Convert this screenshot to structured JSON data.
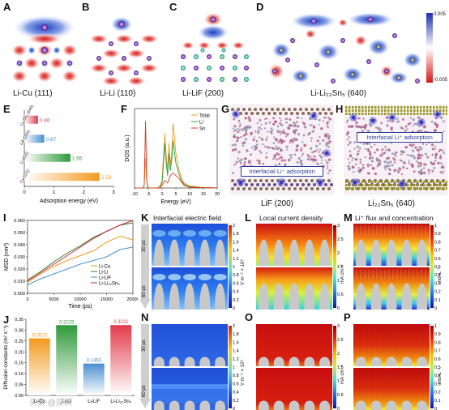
{
  "panels": {
    "A": {
      "letter": "A",
      "caption": "Li-Cu (111)"
    },
    "B": {
      "letter": "B",
      "caption": "Li-Li (110)"
    },
    "C": {
      "letter": "C",
      "caption": "Li-LiF (200)"
    },
    "D": {
      "letter": "D",
      "caption": "Li-Li₂₂Sn₅ (640)",
      "colorbar_max": "0.005",
      "colorbar_min": "-0.005"
    },
    "E": {
      "letter": "E"
    },
    "F": {
      "letter": "F"
    },
    "G": {
      "letter": "G",
      "caption": "LiF (200)",
      "annotation": "Interfacial Li⁺ adsorption"
    },
    "H": {
      "letter": "H",
      "caption": "Li₂₂Sn₅ (640)",
      "annotation": "Interfacial Li⁺ adsorption"
    },
    "I": {
      "letter": "I"
    },
    "J": {
      "letter": "J"
    },
    "K": {
      "letter": "K",
      "title": "Interfacial electric field",
      "unit": "V m⁻¹ × 10⁸",
      "time_top": "30 ps",
      "time_bottom": "60 ps"
    },
    "L": {
      "letter": "L",
      "title": "Local current density",
      "unit": "mA cm⁻²"
    },
    "M": {
      "letter": "M",
      "title": "Li⁺ flux and concentration",
      "unit": "mol L⁻¹"
    },
    "N": {
      "letter": "N",
      "unit": "V m⁻¹ × 10⁸",
      "time_top": "30 ps",
      "time_bottom": "60 ps"
    },
    "O": {
      "letter": "O",
      "unit": "mA cm⁻²"
    },
    "P": {
      "letter": "P",
      "unit": "mol L⁻¹"
    }
  },
  "colorbars": {
    "K": [
      "2",
      "1.8",
      "1.6",
      "1.4",
      "1.2",
      "1",
      "0.8",
      "0.6",
      "0.4",
      "0.2",
      "0"
    ],
    "L": [
      "3",
      "2.5",
      "2",
      "1.5",
      "1",
      "0.5",
      "0"
    ],
    "M": [
      "1",
      "0.9",
      "0.8",
      "0.7",
      "0.6",
      "0.5",
      "0.4",
      "0.3",
      "0.2",
      "0.1",
      "0"
    ],
    "N": [
      "2",
      "1.8",
      "1.6",
      "1.4",
      "1.2",
      "1",
      "0.8",
      "0.6",
      "0.4",
      "0.2",
      "0"
    ],
    "O": [
      "3",
      "2.5",
      "2",
      "1.5",
      "1",
      "0.5",
      "0"
    ],
    "P": [
      "1",
      "0.9",
      "0.8",
      "0.7",
      "0.6",
      "0.5",
      "0.4",
      "0.3",
      "0.2",
      "0.1",
      "0"
    ]
  },
  "watermark": "头条 @深圳",
  "chart_data": [
    {
      "id": "E",
      "type": "bar",
      "orientation": "horizontal",
      "categories": [
        "Li₂₂Sn₅ (640)",
        "LiF (200)",
        "Li (110)",
        "Cu (111)"
      ],
      "values": [
        0.46,
        0.67,
        1.55,
        2.53
      ],
      "value_labels": [
        "0.46",
        "0.67",
        "1.55",
        "2.53"
      ],
      "colors": [
        "#e23b4a",
        "#4a8fd0",
        "#2f9a3a",
        "#f39a1e"
      ],
      "xlabel": "Adsorption energy (eV)",
      "xlim": [
        0,
        3
      ],
      "xticks": [
        "0",
        "1",
        "2",
        "3"
      ]
    },
    {
      "id": "F",
      "type": "line",
      "xlabel": "Energy (eV)",
      "ylabel": "DOS (a.u.)",
      "xlim": [
        -10,
        20
      ],
      "xticks": [
        "-10",
        "-5",
        "0",
        "5",
        "10",
        "15",
        "20"
      ],
      "legend": "top-right",
      "series": [
        {
          "name": "Total",
          "color": "#f39a1e",
          "x": [
            -10,
            -7,
            -6.5,
            -6,
            -5.6,
            -5.2,
            -5,
            -4,
            -2,
            -1,
            0,
            0.5,
            1,
            1.5,
            2,
            2.5,
            3,
            3.5,
            4,
            5,
            6,
            7,
            8,
            10,
            15,
            20
          ],
          "y": [
            0,
            0,
            0.1,
            1.2,
            0.3,
            0.05,
            0,
            0,
            0,
            0.05,
            0.3,
            1.3,
            2.2,
            1.3,
            0.7,
            1.8,
            0.9,
            1.4,
            2.6,
            1.4,
            0.8,
            0.4,
            0.2,
            0.08,
            0.02,
            0
          ]
        },
        {
          "name": "Li",
          "color": "#2f9a3a",
          "x": [
            -10,
            -6,
            -4,
            -1,
            0,
            0.5,
            1,
            1.5,
            2,
            2.5,
            3,
            3.5,
            4,
            5,
            6,
            7,
            8,
            10,
            15,
            20
          ],
          "y": [
            0,
            0,
            0,
            0,
            0.2,
            1,
            1.8,
            1,
            0.5,
            1.4,
            0.7,
            1.1,
            1.9,
            1,
            0.6,
            0.3,
            0.15,
            0.05,
            0.01,
            0
          ]
        },
        {
          "name": "Sn",
          "color": "#d63a1f",
          "x": [
            -10,
            -7,
            -6.5,
            -6,
            -5.6,
            -5,
            -4,
            -1,
            0,
            1,
            2,
            3,
            4,
            6,
            8,
            10,
            20
          ],
          "y": [
            0,
            0,
            0.1,
            2.7,
            0.3,
            0,
            0,
            0,
            0.1,
            0.3,
            0.2,
            0.5,
            0.6,
            0.4,
            0.1,
            0.03,
            0
          ]
        }
      ]
    },
    {
      "id": "I",
      "type": "line",
      "xlabel": "Time (ps)",
      "ylabel": "MSD (nm²)",
      "xlim": [
        0,
        20000
      ],
      "ylim": [
        0,
        0.06
      ],
      "xticks": [
        "0",
        "5000",
        "10000",
        "15000",
        "20000"
      ],
      "yticks": [
        "0.000",
        "0.010",
        "0.020",
        "0.030",
        "0.040",
        "0.050",
        "0.060"
      ],
      "legend": "bottom-right",
      "series": [
        {
          "name": "Li-Cu",
          "color": "#f39a1e",
          "x": [
            0,
            2500,
            5000,
            7500,
            10000,
            12500,
            15000,
            17500,
            20000
          ],
          "y": [
            0.009,
            0.016,
            0.022,
            0.027,
            0.031,
            0.035,
            0.042,
            0.047,
            0.044
          ]
        },
        {
          "name": "Li-Li",
          "color": "#2f7d2f",
          "x": [
            0,
            2500,
            5000,
            7500,
            10000,
            12500,
            15000,
            17500,
            20000
          ],
          "y": [
            0.011,
            0.018,
            0.026,
            0.033,
            0.039,
            0.046,
            0.051,
            0.056,
            0.058
          ]
        },
        {
          "name": "Li-LiF",
          "color": "#4a8fd0",
          "x": [
            0,
            2500,
            5000,
            7500,
            10000,
            12500,
            15000,
            17500,
            20000
          ],
          "y": [
            0.007,
            0.012,
            0.016,
            0.02,
            0.024,
            0.027,
            0.03,
            0.036,
            0.038
          ]
        },
        {
          "name": "Li-Li₂₂Sn₅",
          "color": "#c8253a",
          "x": [
            0,
            2500,
            5000,
            7500,
            10000,
            12500,
            15000,
            17500,
            20000
          ],
          "y": [
            0.01,
            0.017,
            0.024,
            0.031,
            0.038,
            0.045,
            0.051,
            0.056,
            0.06
          ]
        }
      ]
    },
    {
      "id": "J",
      "type": "bar",
      "ylabel": "Diffusion constants (m² s⁻¹)",
      "ylim": [
        0,
        0.35
      ],
      "yticks": [
        "0.00",
        "0.05",
        "0.10",
        "0.15",
        "0.20",
        "0.25",
        "0.30",
        "0.35"
      ],
      "categories": [
        "Li-Cu",
        "Li-Li",
        "Li-LiF",
        "Li-Li₂₂Sn₅"
      ],
      "values": [
        0.2623,
        0.3229,
        0.1463,
        0.3231
      ],
      "value_labels": [
        "0.2623",
        "0.3229",
        "0.1463",
        "0.3231"
      ],
      "colors": [
        "#f39a1e",
        "#2f9a3a",
        "#4a8fd0",
        "#e23b4a"
      ]
    }
  ]
}
